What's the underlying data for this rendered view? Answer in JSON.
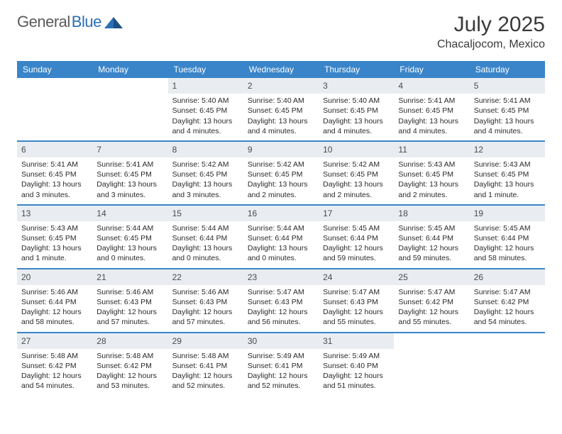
{
  "brand": {
    "part1": "General",
    "part2": "Blue"
  },
  "title": "July 2025",
  "location": "Chacaljocom, Mexico",
  "colors": {
    "header_bg": "#3a85c9",
    "daynum_bg": "#e9edf1",
    "week_border": "#3a85c9",
    "text": "#2a2a2a",
    "title_text": "#3a3a3a",
    "logo_gray": "#5a5a5a",
    "logo_blue": "#2b6fb5"
  },
  "typography": {
    "title_fontsize": 30,
    "location_fontsize": 16,
    "dow_fontsize": 12,
    "cell_fontsize": 10.5,
    "daynum_fontsize": 12
  },
  "days_of_week": [
    "Sunday",
    "Monday",
    "Tuesday",
    "Wednesday",
    "Thursday",
    "Friday",
    "Saturday"
  ],
  "weeks": [
    [
      {
        "day": "",
        "sunrise": "",
        "sunset": "",
        "daylight": "",
        "empty": true
      },
      {
        "day": "",
        "sunrise": "",
        "sunset": "",
        "daylight": "",
        "empty": true
      },
      {
        "day": "1",
        "sunrise": "Sunrise: 5:40 AM",
        "sunset": "Sunset: 6:45 PM",
        "daylight": "Daylight: 13 hours and 4 minutes."
      },
      {
        "day": "2",
        "sunrise": "Sunrise: 5:40 AM",
        "sunset": "Sunset: 6:45 PM",
        "daylight": "Daylight: 13 hours and 4 minutes."
      },
      {
        "day": "3",
        "sunrise": "Sunrise: 5:40 AM",
        "sunset": "Sunset: 6:45 PM",
        "daylight": "Daylight: 13 hours and 4 minutes."
      },
      {
        "day": "4",
        "sunrise": "Sunrise: 5:41 AM",
        "sunset": "Sunset: 6:45 PM",
        "daylight": "Daylight: 13 hours and 4 minutes."
      },
      {
        "day": "5",
        "sunrise": "Sunrise: 5:41 AM",
        "sunset": "Sunset: 6:45 PM",
        "daylight": "Daylight: 13 hours and 4 minutes."
      }
    ],
    [
      {
        "day": "6",
        "sunrise": "Sunrise: 5:41 AM",
        "sunset": "Sunset: 6:45 PM",
        "daylight": "Daylight: 13 hours and 3 minutes."
      },
      {
        "day": "7",
        "sunrise": "Sunrise: 5:41 AM",
        "sunset": "Sunset: 6:45 PM",
        "daylight": "Daylight: 13 hours and 3 minutes."
      },
      {
        "day": "8",
        "sunrise": "Sunrise: 5:42 AM",
        "sunset": "Sunset: 6:45 PM",
        "daylight": "Daylight: 13 hours and 3 minutes."
      },
      {
        "day": "9",
        "sunrise": "Sunrise: 5:42 AM",
        "sunset": "Sunset: 6:45 PM",
        "daylight": "Daylight: 13 hours and 2 minutes."
      },
      {
        "day": "10",
        "sunrise": "Sunrise: 5:42 AM",
        "sunset": "Sunset: 6:45 PM",
        "daylight": "Daylight: 13 hours and 2 minutes."
      },
      {
        "day": "11",
        "sunrise": "Sunrise: 5:43 AM",
        "sunset": "Sunset: 6:45 PM",
        "daylight": "Daylight: 13 hours and 2 minutes."
      },
      {
        "day": "12",
        "sunrise": "Sunrise: 5:43 AM",
        "sunset": "Sunset: 6:45 PM",
        "daylight": "Daylight: 13 hours and 1 minute."
      }
    ],
    [
      {
        "day": "13",
        "sunrise": "Sunrise: 5:43 AM",
        "sunset": "Sunset: 6:45 PM",
        "daylight": "Daylight: 13 hours and 1 minute."
      },
      {
        "day": "14",
        "sunrise": "Sunrise: 5:44 AM",
        "sunset": "Sunset: 6:45 PM",
        "daylight": "Daylight: 13 hours and 0 minutes."
      },
      {
        "day": "15",
        "sunrise": "Sunrise: 5:44 AM",
        "sunset": "Sunset: 6:44 PM",
        "daylight": "Daylight: 13 hours and 0 minutes."
      },
      {
        "day": "16",
        "sunrise": "Sunrise: 5:44 AM",
        "sunset": "Sunset: 6:44 PM",
        "daylight": "Daylight: 13 hours and 0 minutes."
      },
      {
        "day": "17",
        "sunrise": "Sunrise: 5:45 AM",
        "sunset": "Sunset: 6:44 PM",
        "daylight": "Daylight: 12 hours and 59 minutes."
      },
      {
        "day": "18",
        "sunrise": "Sunrise: 5:45 AM",
        "sunset": "Sunset: 6:44 PM",
        "daylight": "Daylight: 12 hours and 59 minutes."
      },
      {
        "day": "19",
        "sunrise": "Sunrise: 5:45 AM",
        "sunset": "Sunset: 6:44 PM",
        "daylight": "Daylight: 12 hours and 58 minutes."
      }
    ],
    [
      {
        "day": "20",
        "sunrise": "Sunrise: 5:46 AM",
        "sunset": "Sunset: 6:44 PM",
        "daylight": "Daylight: 12 hours and 58 minutes."
      },
      {
        "day": "21",
        "sunrise": "Sunrise: 5:46 AM",
        "sunset": "Sunset: 6:43 PM",
        "daylight": "Daylight: 12 hours and 57 minutes."
      },
      {
        "day": "22",
        "sunrise": "Sunrise: 5:46 AM",
        "sunset": "Sunset: 6:43 PM",
        "daylight": "Daylight: 12 hours and 57 minutes."
      },
      {
        "day": "23",
        "sunrise": "Sunrise: 5:47 AM",
        "sunset": "Sunset: 6:43 PM",
        "daylight": "Daylight: 12 hours and 56 minutes."
      },
      {
        "day": "24",
        "sunrise": "Sunrise: 5:47 AM",
        "sunset": "Sunset: 6:43 PM",
        "daylight": "Daylight: 12 hours and 55 minutes."
      },
      {
        "day": "25",
        "sunrise": "Sunrise: 5:47 AM",
        "sunset": "Sunset: 6:42 PM",
        "daylight": "Daylight: 12 hours and 55 minutes."
      },
      {
        "day": "26",
        "sunrise": "Sunrise: 5:47 AM",
        "sunset": "Sunset: 6:42 PM",
        "daylight": "Daylight: 12 hours and 54 minutes."
      }
    ],
    [
      {
        "day": "27",
        "sunrise": "Sunrise: 5:48 AM",
        "sunset": "Sunset: 6:42 PM",
        "daylight": "Daylight: 12 hours and 54 minutes."
      },
      {
        "day": "28",
        "sunrise": "Sunrise: 5:48 AM",
        "sunset": "Sunset: 6:42 PM",
        "daylight": "Daylight: 12 hours and 53 minutes."
      },
      {
        "day": "29",
        "sunrise": "Sunrise: 5:48 AM",
        "sunset": "Sunset: 6:41 PM",
        "daylight": "Daylight: 12 hours and 52 minutes."
      },
      {
        "day": "30",
        "sunrise": "Sunrise: 5:49 AM",
        "sunset": "Sunset: 6:41 PM",
        "daylight": "Daylight: 12 hours and 52 minutes."
      },
      {
        "day": "31",
        "sunrise": "Sunrise: 5:49 AM",
        "sunset": "Sunset: 6:40 PM",
        "daylight": "Daylight: 12 hours and 51 minutes."
      },
      {
        "day": "",
        "sunrise": "",
        "sunset": "",
        "daylight": "",
        "empty": true
      },
      {
        "day": "",
        "sunrise": "",
        "sunset": "",
        "daylight": "",
        "empty": true
      }
    ]
  ]
}
